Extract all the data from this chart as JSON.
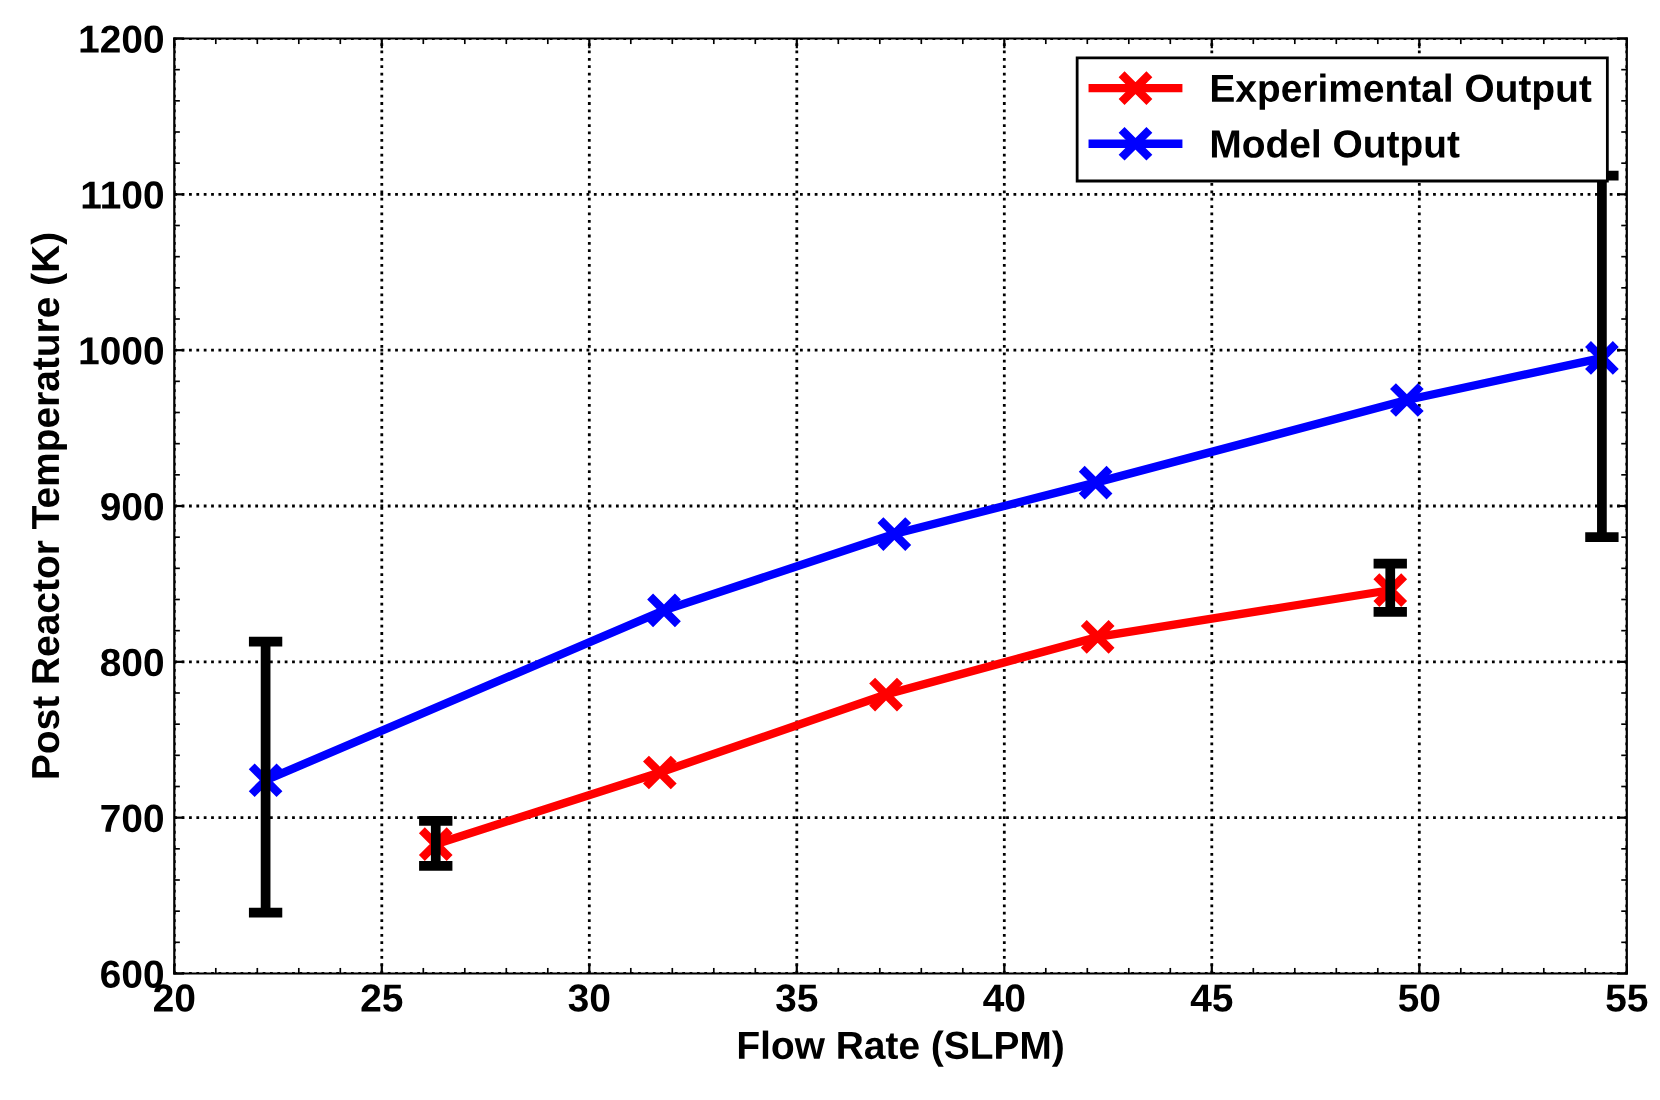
{
  "chart_data": {
    "type": "line",
    "xlabel": "Flow Rate (SLPM)",
    "ylabel": "Post Reactor Temperature (K)",
    "xlim": [
      20,
      55
    ],
    "xticks": [
      20,
      25,
      30,
      35,
      40,
      45,
      50,
      55
    ],
    "ylim": [
      600,
      1200
    ],
    "yticks": [
      600,
      700,
      800,
      900,
      1000,
      1100,
      1200
    ],
    "grid": true,
    "legend": "top right",
    "marker": "cross",
    "line_style": "solid",
    "series": [
      {
        "name": "Experimental Output",
        "color": "#ff0000",
        "x": [
          26.3,
          31.7,
          37.15,
          42.25,
          49.3
        ],
        "values": [
          683,
          729,
          779,
          816,
          846
        ],
        "errors": [
          [
            669,
            698
          ],
          null,
          null,
          null,
          [
            832,
            863
          ]
        ]
      },
      {
        "name": "Model Output",
        "color": "#0000ff",
        "x": [
          22.2,
          31.8,
          37.35,
          42.2,
          49.7,
          54.4
        ],
        "values": [
          724,
          833,
          882,
          915,
          968,
          995
        ],
        "errors": [
          [
            639,
            813
          ],
          null,
          null,
          null,
          null,
          [
            880,
            1112
          ]
        ]
      }
    ]
  }
}
